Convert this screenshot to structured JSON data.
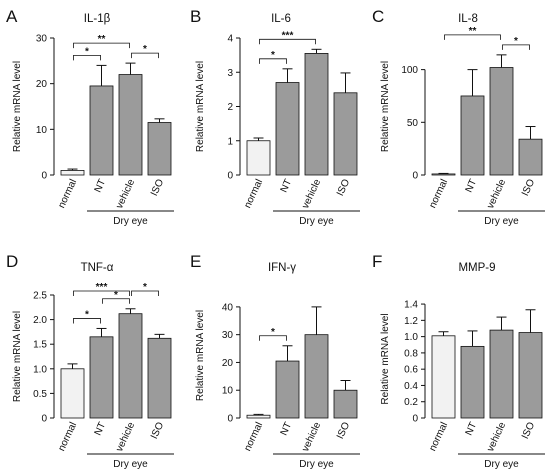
{
  "figure": {
    "bar_fill_control": "#f2f2f2",
    "bar_fill_treated": "#9b9b9b",
    "axis_color": "#111111",
    "group_line_color": "#888888"
  },
  "chart_data": [
    {
      "type": "bar",
      "panel": "A",
      "title": "IL-1β",
      "ylabel": "Relative mRNA level",
      "xlabel": "",
      "categories": [
        "normal",
        "NT",
        "vehicle",
        "ISO"
      ],
      "values": [
        1,
        19.5,
        22,
        11.5
      ],
      "errors": [
        0.3,
        4.5,
        2.5,
        0.8
      ],
      "ylim": [
        0,
        30
      ],
      "yticks": [
        "0",
        "10",
        "20",
        "30"
      ],
      "ytick_values": [
        0,
        10,
        20,
        30
      ],
      "group_label": "Dry eye",
      "group_span": [
        1,
        3
      ],
      "significance": [
        {
          "from": 0,
          "to": 1,
          "label": "*"
        },
        {
          "from": 0,
          "to": 2,
          "label": "**"
        },
        {
          "from": 2,
          "to": 3,
          "label": "*"
        }
      ]
    },
    {
      "type": "bar",
      "panel": "B",
      "title": "IL-6",
      "ylabel": "Relative mRNA level",
      "xlabel": "",
      "categories": [
        "normal",
        "NT",
        "vehicle",
        "ISO"
      ],
      "values": [
        1,
        2.7,
        3.55,
        2.4
      ],
      "errors": [
        0.08,
        0.4,
        0.12,
        0.58
      ],
      "ylim": [
        0,
        4
      ],
      "yticks": [
        "0",
        "1",
        "2",
        "3",
        "4"
      ],
      "ytick_values": [
        0,
        1,
        2,
        3,
        4
      ],
      "group_label": "Dry eye",
      "group_span": [
        1,
        3
      ],
      "significance": [
        {
          "from": 0,
          "to": 1,
          "label": "*"
        },
        {
          "from": 0,
          "to": 2,
          "label": "***"
        }
      ]
    },
    {
      "type": "bar",
      "panel": "C",
      "title": "IL-8",
      "ylabel": "Relative mRNA level",
      "xlabel": "",
      "categories": [
        "normal",
        "NT",
        "vehicle",
        "ISO"
      ],
      "values": [
        1,
        75,
        102,
        34
      ],
      "errors": [
        0.5,
        25,
        12,
        12
      ],
      "ylim": [
        0,
        130
      ],
      "yticks": [
        "0",
        "50",
        "100"
      ],
      "ytick_values": [
        0,
        50,
        100
      ],
      "group_label": "Dry eye",
      "group_span": [
        1,
        3
      ],
      "significance": [
        {
          "from": 0,
          "to": 2,
          "label": "**"
        },
        {
          "from": 2,
          "to": 3,
          "label": "*"
        }
      ]
    },
    {
      "type": "bar",
      "panel": "D",
      "title": "TNF-α",
      "ylabel": "Relative mRNA level",
      "xlabel": "",
      "categories": [
        "normal",
        "NT",
        "vehicle",
        "ISO"
      ],
      "values": [
        1,
        1.65,
        2.12,
        1.62
      ],
      "errors": [
        0.1,
        0.17,
        0.1,
        0.08
      ],
      "ylim": [
        0,
        2.5
      ],
      "yticks": [
        "0",
        "0.5",
        "1.0",
        "1.5",
        "2.0",
        "2.5"
      ],
      "ytick_values": [
        0,
        0.5,
        1,
        1.5,
        2,
        2.5
      ],
      "group_label": "Dry eye",
      "group_span": [
        1,
        3
      ],
      "significance": [
        {
          "from": 0,
          "to": 1,
          "label": "*"
        },
        {
          "from": 0,
          "to": 2,
          "label": "***"
        },
        {
          "from": 1,
          "to": 2,
          "label": "*"
        },
        {
          "from": 2,
          "to": 3,
          "label": "*"
        }
      ]
    },
    {
      "type": "bar",
      "panel": "E",
      "title": "IFN-γ",
      "ylabel": "Relative mRNA level",
      "xlabel": "",
      "categories": [
        "normal",
        "NT",
        "vehicle",
        "ISO"
      ],
      "values": [
        1,
        20.5,
        30,
        10
      ],
      "errors": [
        0.3,
        5.5,
        10,
        3.5
      ],
      "ylim": [
        0,
        45
      ],
      "yticks": [
        "0",
        "10",
        "20",
        "30",
        "40"
      ],
      "ytick_values": [
        0,
        10,
        20,
        30,
        40
      ],
      "group_label": "Dry eye",
      "group_span": [
        1,
        3
      ],
      "significance": [
        {
          "from": 0,
          "to": 1,
          "label": "*"
        }
      ]
    },
    {
      "type": "bar",
      "panel": "F",
      "title": "MMP-9",
      "ylabel": "Relative mRNA level",
      "xlabel": "",
      "categories": [
        "normal",
        "NT",
        "vehicle",
        "ISO"
      ],
      "values": [
        1.01,
        0.88,
        1.08,
        1.05
      ],
      "errors": [
        0.05,
        0.19,
        0.16,
        0.28
      ],
      "ylim": [
        0,
        1.45
      ],
      "yticks": [
        "0",
        "0.2",
        "0.4",
        "0.6",
        "0.8",
        "1.0",
        "1.2",
        "1.4"
      ],
      "ytick_values": [
        0,
        0.2,
        0.4,
        0.6,
        0.8,
        1.0,
        1.2,
        1.4
      ],
      "group_label": "Dry eye",
      "group_span": [
        1,
        3
      ],
      "significance": []
    }
  ]
}
